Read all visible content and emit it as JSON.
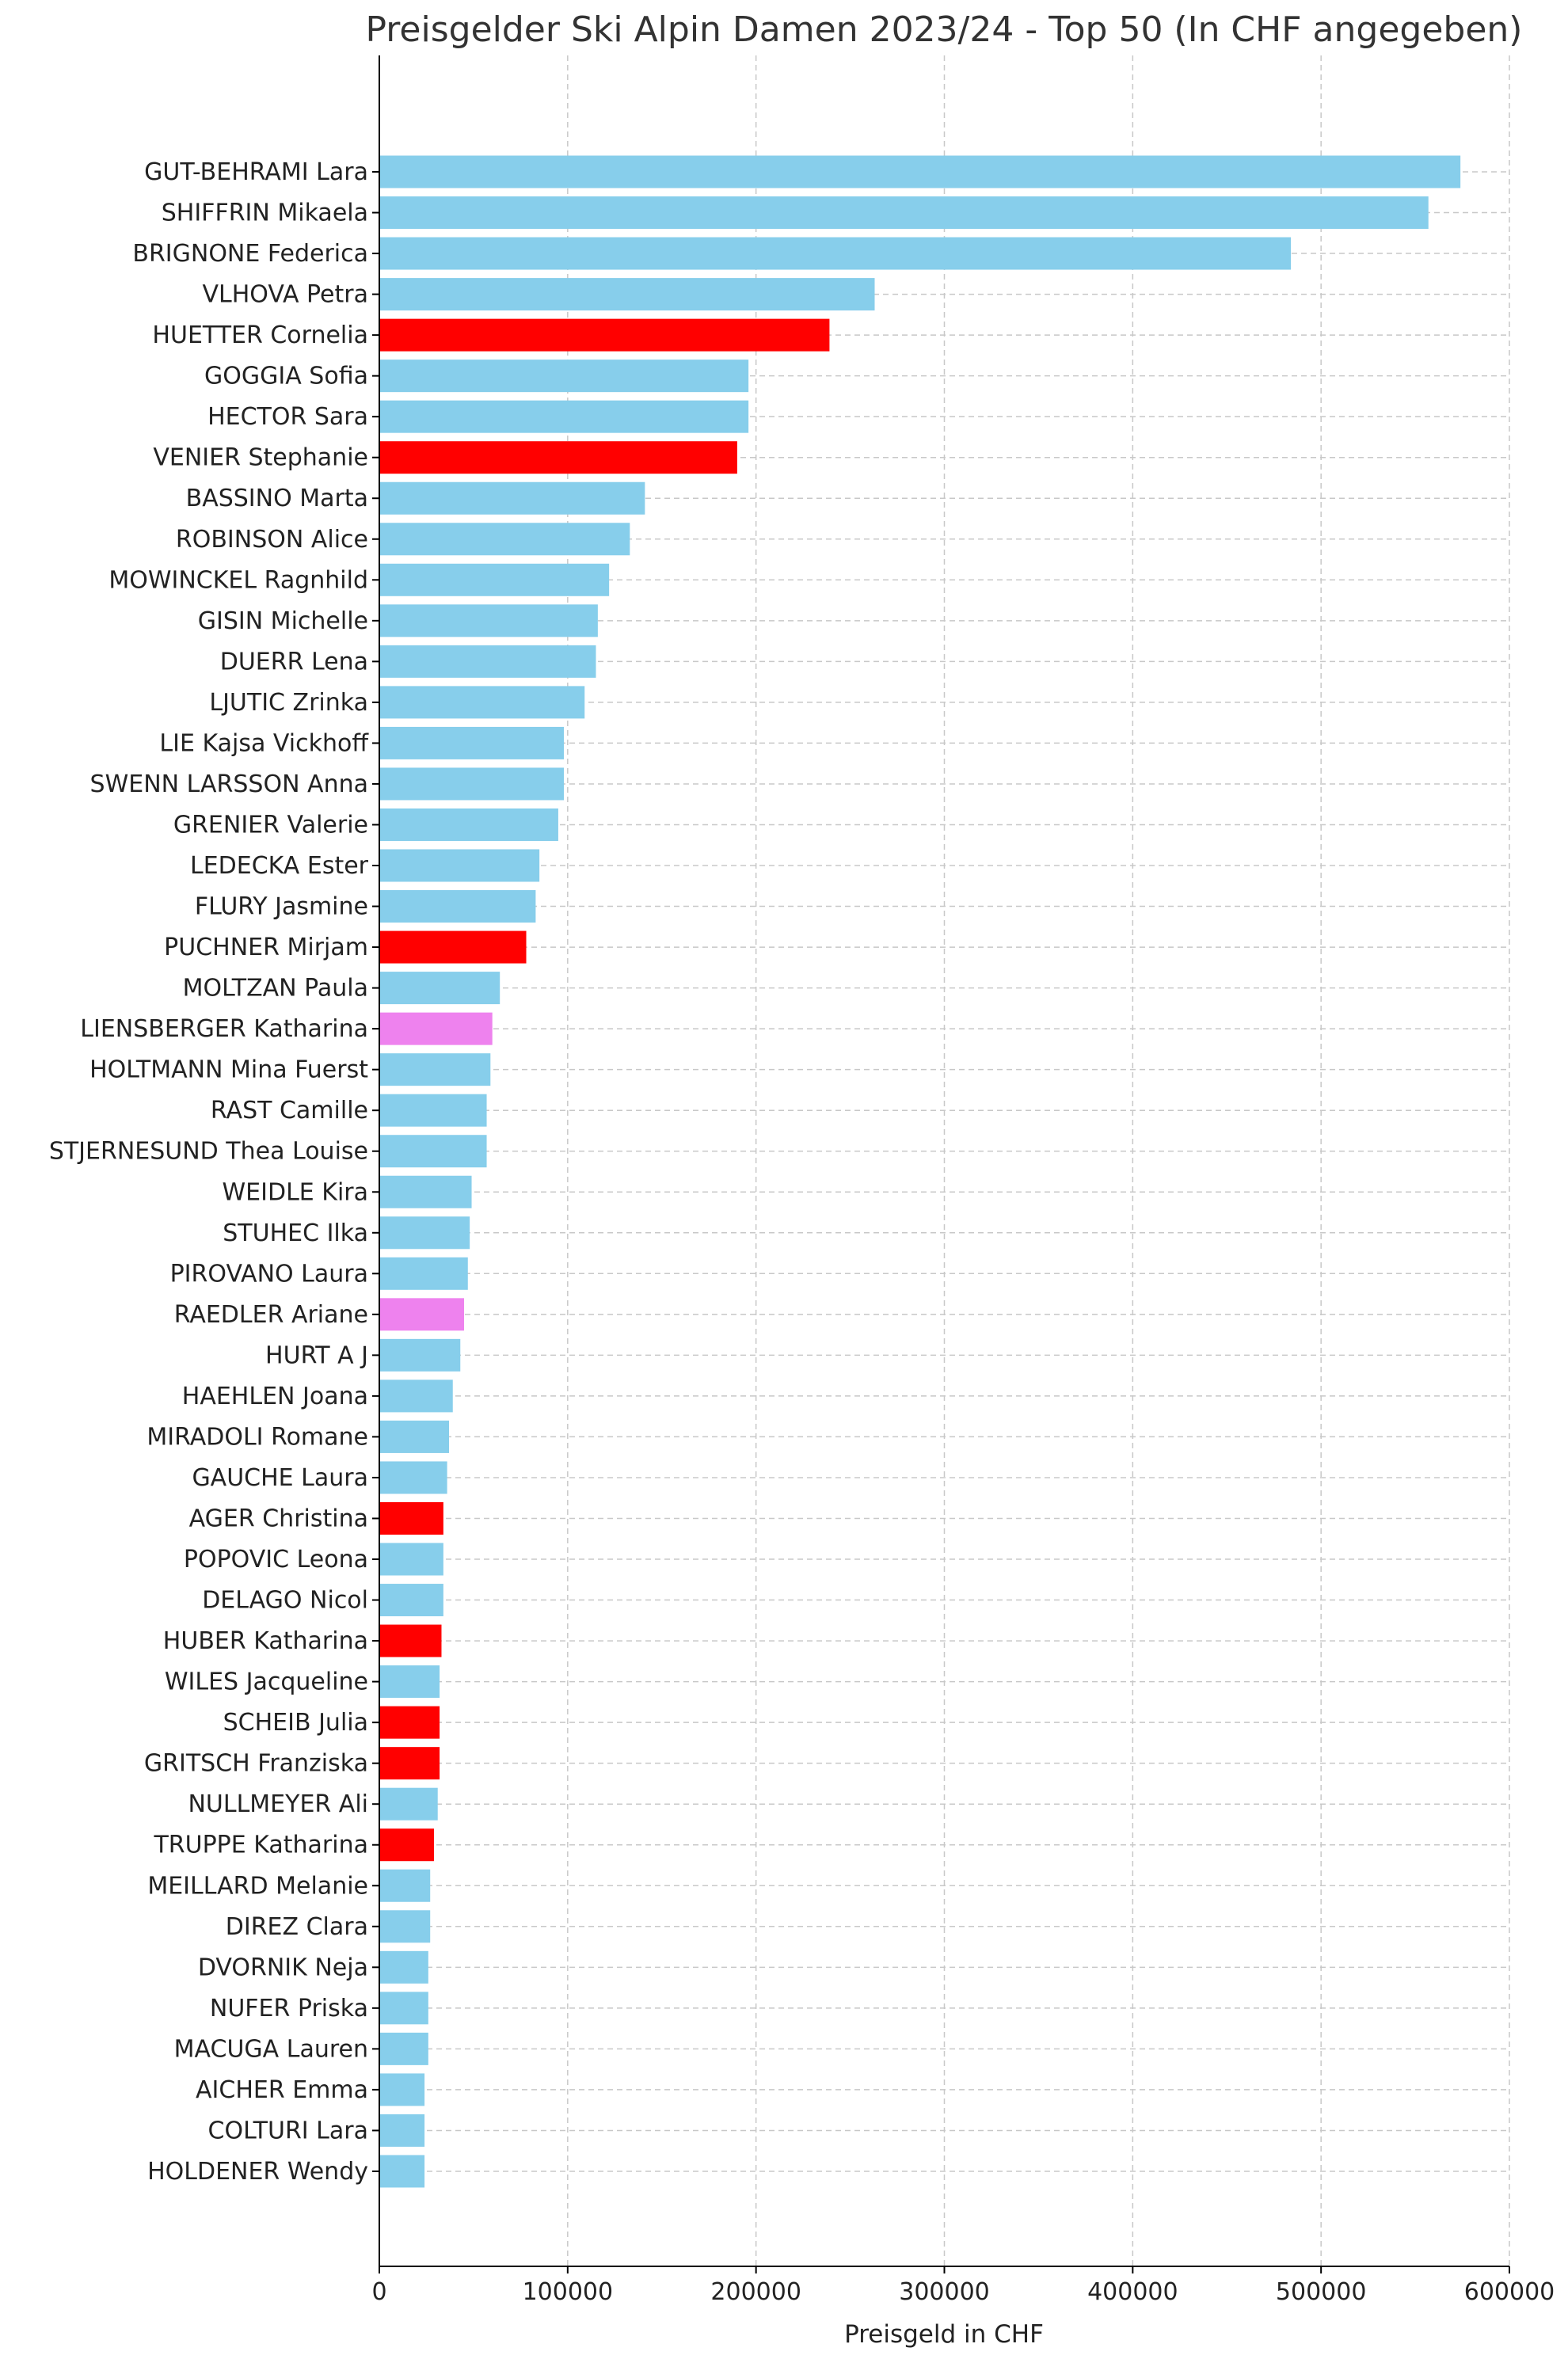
{
  "chart_data": {
    "type": "bar",
    "orientation": "horizontal",
    "title": "Preisgelder Ski Alpin Damen 2023/24 - Top 50 (In CHF angegeben)",
    "xlabel": "Preisgeld in CHF",
    "ylabel": "",
    "xlim": [
      0,
      600000
    ],
    "xticks": [
      0,
      100000,
      200000,
      300000,
      400000,
      500000,
      600000
    ],
    "grid": true,
    "colors": {
      "default": "#87ceeb",
      "red": "#ff0000",
      "violet": "#ee82ee"
    },
    "categories": [
      "GUT-BEHRAMI Lara",
      "SHIFFRIN Mikaela",
      "BRIGNONE Federica",
      "VLHOVA Petra",
      "HUETTER Cornelia",
      "GOGGIA Sofia",
      "HECTOR Sara",
      "VENIER Stephanie",
      "BASSINO Marta",
      "ROBINSON Alice",
      "MOWINCKEL Ragnhild",
      "GISIN Michelle",
      "DUERR Lena",
      "LJUTIC Zrinka",
      "LIE Kajsa Vickhoff",
      "SWENN LARSSON Anna",
      "GRENIER Valerie",
      "LEDECKA Ester",
      "FLURY Jasmine",
      "PUCHNER Mirjam",
      "MOLTZAN Paula",
      "LIENSBERGER Katharina",
      "HOLTMANN Mina Fuerst",
      "RAST Camille",
      "STJERNESUND Thea Louise",
      "WEIDLE Kira",
      "STUHEC Ilka",
      "PIROVANO Laura",
      "RAEDLER Ariane",
      "HURT A J",
      "HAEHLEN Joana",
      "MIRADOLI Romane",
      "GAUCHE Laura",
      "AGER Christina",
      "POPOVIC Leona",
      "DELAGO Nicol",
      "HUBER Katharina",
      "WILES Jacqueline",
      "SCHEIB Julia",
      "GRITSCH Franziska",
      "NULLMEYER Ali",
      "TRUPPE Katharina",
      "MEILLARD Melanie",
      "DIREZ Clara",
      "DVORNIK Neja",
      "NUFER Priska",
      "MACUGA Lauren",
      "AICHER Emma",
      "COLTURI Lara",
      "HOLDENER Wendy"
    ],
    "values": [
      574000,
      557000,
      484000,
      263000,
      239000,
      196000,
      196000,
      190000,
      141000,
      133000,
      122000,
      116000,
      115000,
      109000,
      98000,
      98000,
      95000,
      85000,
      83000,
      78000,
      64000,
      60000,
      59000,
      57000,
      57000,
      49000,
      48000,
      47000,
      45000,
      43000,
      39000,
      37000,
      36000,
      34000,
      34000,
      34000,
      33000,
      32000,
      32000,
      32000,
      31000,
      29000,
      27000,
      27000,
      26000,
      26000,
      26000,
      24000,
      24000,
      24000
    ],
    "bar_colors": [
      "#87ceeb",
      "#87ceeb",
      "#87ceeb",
      "#87ceeb",
      "#ff0000",
      "#87ceeb",
      "#87ceeb",
      "#ff0000",
      "#87ceeb",
      "#87ceeb",
      "#87ceeb",
      "#87ceeb",
      "#87ceeb",
      "#87ceeb",
      "#87ceeb",
      "#87ceeb",
      "#87ceeb",
      "#87ceeb",
      "#87ceeb",
      "#ff0000",
      "#87ceeb",
      "#ee82ee",
      "#87ceeb",
      "#87ceeb",
      "#87ceeb",
      "#87ceeb",
      "#87ceeb",
      "#87ceeb",
      "#ee82ee",
      "#87ceeb",
      "#87ceeb",
      "#87ceeb",
      "#87ceeb",
      "#ff0000",
      "#87ceeb",
      "#87ceeb",
      "#ff0000",
      "#87ceeb",
      "#ff0000",
      "#ff0000",
      "#87ceeb",
      "#ff0000",
      "#87ceeb",
      "#87ceeb",
      "#87ceeb",
      "#87ceeb",
      "#87ceeb",
      "#87ceeb",
      "#87ceeb",
      "#87ceeb"
    ]
  }
}
